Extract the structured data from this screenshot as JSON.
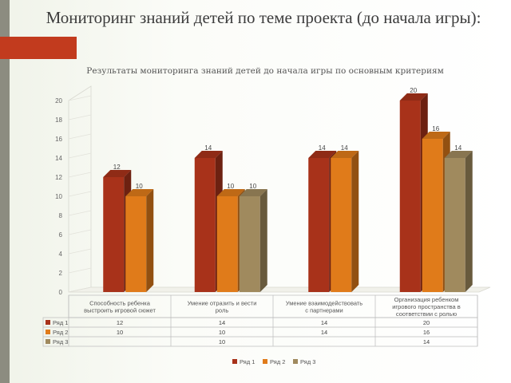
{
  "slide": {
    "title": "Мониторинг знаний детей по теме проекта (до начала игры):",
    "accent_color": "#c23b1e"
  },
  "chart_data": {
    "type": "bar",
    "title": "Результаты мониторинга знаний детей до начала игры по основным критериям",
    "categories": [
      [
        "Способность ребенка",
        "выстроить игровой сюжет"
      ],
      [
        "Умение отразить и вести",
        "роль"
      ],
      [
        "Умение взаимодействовать",
        "с партнерами"
      ],
      [
        "Организация ребенком",
        "игрового пространства в",
        "соответствии с ролью"
      ]
    ],
    "series": [
      {
        "name": "Ряд 1",
        "color": "#a8321a",
        "values": [
          12,
          14,
          14,
          20
        ]
      },
      {
        "name": "Ряд 2",
        "color": "#e07b1a",
        "values": [
          10,
          10,
          14,
          16
        ]
      },
      {
        "name": "Ряд 3",
        "color": "#a08a5e",
        "values": [
          null,
          10,
          null,
          14
        ]
      }
    ],
    "ylim": [
      0,
      20
    ],
    "yticks": [
      0,
      2,
      4,
      6,
      8,
      10,
      12,
      14,
      16,
      18,
      20
    ],
    "data_table": true,
    "legend_position": "bottom"
  }
}
